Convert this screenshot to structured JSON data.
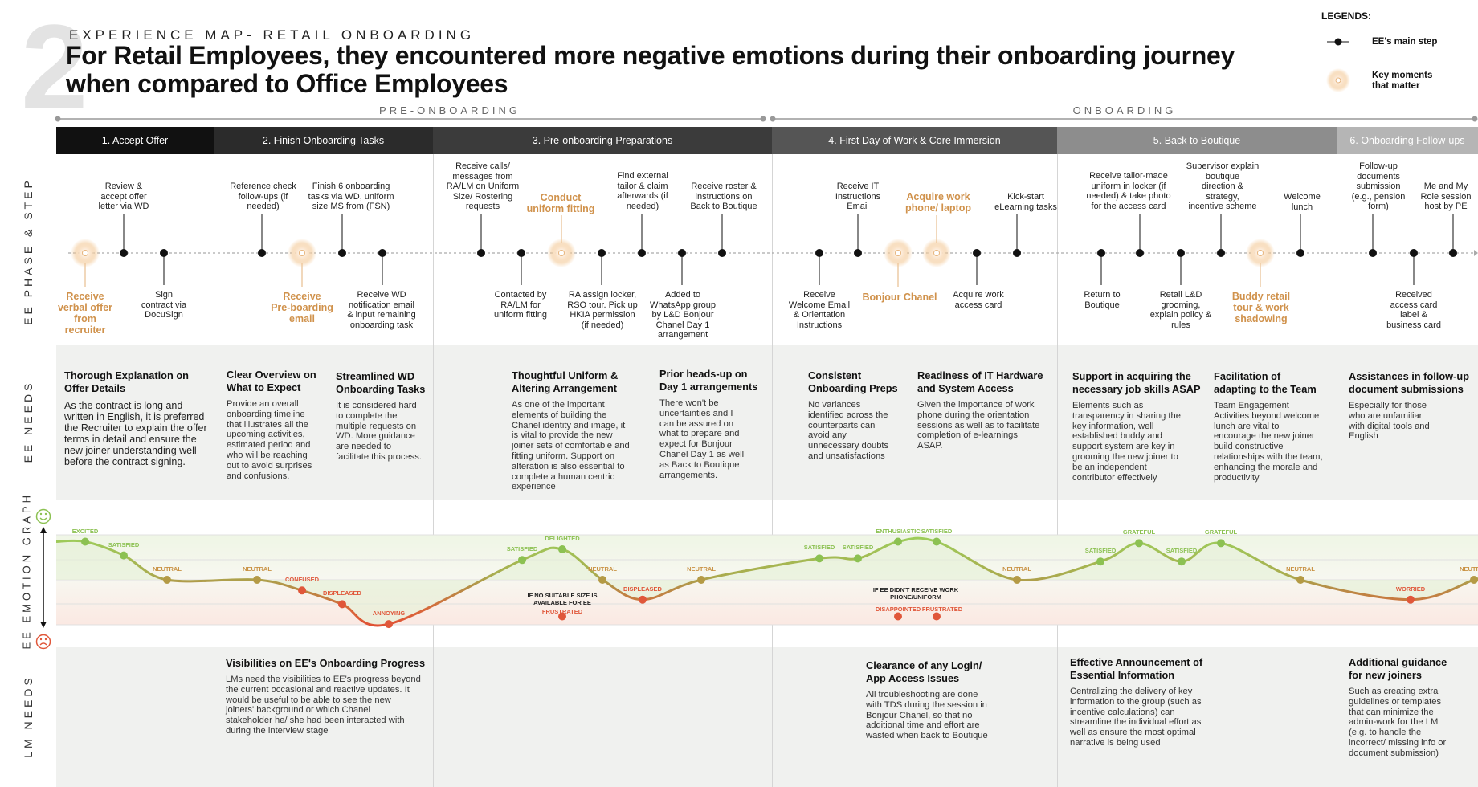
{
  "header": {
    "number": "2",
    "subtitle": "EXPERIENCE MAP- RETAIL ONBOARDING",
    "title_line1": "For Retail Employees, they encountered more negative emotions during their onboarding journey",
    "title_line2": "when compared to Office Employees"
  },
  "legend": {
    "title": "LEGENDS:",
    "main_step": "EE's main step",
    "key_moments_1": "Key moments",
    "key_moments_2": "that matter"
  },
  "phases": {
    "pre": "PRE-ONBOARDING",
    "on": "ONBOARDING"
  },
  "side_labels": {
    "steps": "EE PHASE & STEP",
    "ee_needs": "EE NEEDS",
    "emotion": "EE EMOTION GRAPH",
    "lm_needs": "LM NEEDS"
  },
  "stages": [
    "1. Accept Offer",
    "2. Finish Onboarding Tasks",
    "3. Pre-onboarding Preparations",
    "4. First Day of Work & Core Immersion",
    "5. Back to Boutique",
    "6. Onboarding Follow-ups"
  ],
  "steps_top": [
    "Review &\naccept offer\nletter via WD",
    "Reference check\nfollow-ups (if\nneeded)",
    "Finish 6 onboarding\ntasks via WD, uniform\nsize MS from (FSN)",
    "Receive calls/\nmessages from\nRA/LM on Uniform\nSize/ Rostering\nrequests",
    "Conduct\nuniform fitting",
    "Find external\ntailor & claim\nafterwards (if\nneeded)",
    "Receive roster &\ninstructions on\nBack to Boutique",
    "Receive IT\nInstructions\nEmail",
    "Acquire work\nphone/ laptop",
    "Kick-start\neLearning tasks",
    "Receive tailor-made\nuniform in locker (if\nneeded) & take photo\nfor the access card",
    "Supervisor explain\nboutique\ndirection &\nstrategy,\nincentive scheme",
    "Welcome\nlunch",
    "Follow-up\ndocuments\nsubmission\n(e.g., pension\nform)",
    "Me and My\nRole session\nhost by PE"
  ],
  "steps_bottom": [
    "Receive\nverbal offer\nfrom\nrecruiter",
    "Sign\ncontract via\nDocuSign",
    "Receive\nPre-boarding\nemail",
    "Receive WD\nnotification email\n& input remaining\nonboarding task",
    "Contacted by\nRA/LM for\nuniform fitting",
    "RA assign locker,\nRSO tour. Pick up\nHKIA permission\n(if needed)",
    "Added to\nWhatsApp group\nby L&D Bonjour\nChanel Day 1\narrangement",
    "Receive\nWelcome Email\n& Orientation\nInstructions",
    "Bonjour Chanel",
    "Acquire work\naccess card",
    "Return to\nBoutique",
    "Retail L&D\ngrooming,\nexplain policy &\nrules",
    "Buddy retail\ntour & work\nshadowing",
    "Received\naccess card\nlabel &\nbusiness card"
  ],
  "ee_needs": [
    {
      "h": "Thorough Explanation on\nOffer Details",
      "b": "As the contract is long and\nwritten in English, it is preferred\nthe Recruiter to explain the offer\nterms in detail and ensure the\nnew joiner understanding well\nbefore the contract signing."
    },
    {
      "h": "Clear Overview on\nWhat to Expect",
      "b": "Provide an overall\nonboarding timeline\nthat illustrates all the\nupcoming activities,\nestimated period and\nwho will be reaching\nout to avoid surprises\nand confusions."
    },
    {
      "h": "Streamlined WD\nOnboarding Tasks",
      "b": "It is considered hard\nto complete the\nmultiple requests on\nWD. More guidance\nare needed to\nfacilitate this process."
    },
    {
      "h": "Thoughtful Uniform &\nAltering Arrangement",
      "b": "As one of the important\nelements of building the\nChanel identity and image, it\nis vital to provide the new\njoiner sets of comfortable and\nfitting uniform. Support on\nalteration is also essential to\ncomplete a human centric\nexperience"
    },
    {
      "h": "Prior heads-up on\nDay 1 arrangements",
      "b": "There won't be\nuncertainties and I\ncan be assured on\nwhat to prepare and\nexpect for Bonjour\nChanel Day 1 as well\nas Back to Boutique\narrangements."
    },
    {
      "h": "Consistent\nOnboarding Preps",
      "b": "No variances\nidentified across the\ncounterparts can\navoid any\nunnecessary doubts\nand unsatisfactions"
    },
    {
      "h": "Readiness of IT Hardware\nand System Access",
      "b": "Given the importance of work\nphone during the orientation\nsessions as well as to facilitate\ncompletion of e-learnings\nASAP."
    },
    {
      "h": "Support in acquiring the\nnecessary job skills ASAP",
      "b": "Elements such as\ntransparency in sharing the\nkey information, well\nestablished buddy and\nsupport system are key in\ngrooming the new joiner to\nbe an independent\ncontributor effectively"
    },
    {
      "h": "Facilitation of\nadapting to the Team",
      "b": "Team Engagement\nActivities beyond welcome\nlunch are vital to\nencourage the new joiner\nbuild constructive\nrelationships with the team,\nenhancing the morale and\nproductivity"
    },
    {
      "h": "Assistances in follow-up\ndocument submissions",
      "b": "Especially for those\nwho are unfamiliar\nwith digital tools and\nEnglish"
    }
  ],
  "emotion_labels": [
    "EXCITED",
    "SATISFIED",
    "NEUTRAL",
    "NEUTRAL",
    "CONFUSED",
    "DISPLEASED",
    "ANNOYING",
    "SATISFIED",
    "DELIGHTED",
    "NEUTRAL",
    "DISPLEASED",
    "NEUTRAL",
    "SATISFIED",
    "SATISFIED",
    "ENTHUSIASTIC",
    "SATISFIED",
    "NEUTRAL",
    "SATISFIED",
    "GRATEFUL",
    "SATISFIED",
    "GRATEFUL",
    "NEUTRAL",
    "WORRIED",
    "NEUTRAL"
  ],
  "emotion_notes": {
    "size_1": "IF NO SUITABLE SIZE IS",
    "size_2": "AVAILABLE FOR EE",
    "frustrated": "FRUSTRATED",
    "phone_1": "IF EE DIDN'T RECEIVE WORK",
    "phone_2": "PHONE/UNIFORM",
    "disappointed": "DISAPPOINTED",
    "frustrated2": "FRUSTRATED"
  },
  "lm_needs": [
    {
      "h": "Visibilities on EE's Onboarding Progress",
      "b": "LMs need the visibilities to EE's progress beyond\nthe current occasional and reactive updates. It\nwould be useful to be able to see the new\njoiners' background or which Chanel\nstakeholder he/ she had been interacted with\nduring the interview stage"
    },
    {
      "h": "Clearance of any Login/\nApp Access Issues",
      "b": "All troubleshooting are done\nwith TDS during the session in\nBonjour Chanel, so that no\nadditional time and effort are\nwasted when back to Boutique"
    },
    {
      "h": "Effective Announcement of\nEssential Information",
      "b": "Centralizing the delivery of key\ninformation to the group (such as\nincentive calculations) can\nstreamline the individual effort as\nwell as ensure the most optimal\nnarrative is being used"
    },
    {
      "h": "Additional guidance\nfor new joiners",
      "b": "Such as creating extra\nguidelines or templates\nthat can minimize the\nadmin-work for the LM\n(e.g. to handle the\nincorrect/ missing info or\ndocument submission)"
    }
  ],
  "chart_data": {
    "type": "line",
    "title": "EE EMOTION GRAPH",
    "y_scale": "emotion level, 0 = neutral, positive = happy, negative = unhappy",
    "points": [
      {
        "x": 1,
        "y": 2.5,
        "label": "EXCITED"
      },
      {
        "x": 2,
        "y": 1.6,
        "label": "SATISFIED"
      },
      {
        "x": 3,
        "y": 0,
        "label": "NEUTRAL"
      },
      {
        "x": 4,
        "y": 0,
        "label": "NEUTRAL"
      },
      {
        "x": 5,
        "y": -0.7,
        "label": "CONFUSED"
      },
      {
        "x": 6,
        "y": -1.6,
        "label": "DISPLEASED"
      },
      {
        "x": 7,
        "y": -2.9,
        "label": "ANNOYING"
      },
      {
        "x": 8,
        "y": 1.3,
        "label": "SATISFIED"
      },
      {
        "x": 9,
        "y": 2.0,
        "label": "DELIGHTED"
      },
      {
        "x": 10,
        "y": 0,
        "label": "NEUTRAL"
      },
      {
        "x": 11,
        "y": -1.3,
        "label": "DISPLEASED"
      },
      {
        "x": 12,
        "y": 0,
        "label": "NEUTRAL"
      },
      {
        "x": 13,
        "y": 1.4,
        "label": "SATISFIED"
      },
      {
        "x": 14,
        "y": 1.4,
        "label": "SATISFIED"
      },
      {
        "x": 15,
        "y": 2.5,
        "label": "ENTHUSIASTIC"
      },
      {
        "x": 16,
        "y": 2.5,
        "label": "SATISFIED"
      },
      {
        "x": 17,
        "y": 0,
        "label": "NEUTRAL"
      },
      {
        "x": 18,
        "y": 1.2,
        "label": "SATISFIED"
      },
      {
        "x": 19,
        "y": 2.4,
        "label": "GRATEFUL"
      },
      {
        "x": 20,
        "y": 1.2,
        "label": "SATISFIED"
      },
      {
        "x": 21,
        "y": 2.4,
        "label": "GRATEFUL"
      },
      {
        "x": 22,
        "y": 0,
        "label": "NEUTRAL"
      },
      {
        "x": 23,
        "y": -1.3,
        "label": "WORRIED"
      },
      {
        "x": 24,
        "y": 0,
        "label": "NEUTRAL"
      }
    ],
    "side_points": [
      {
        "x": 9,
        "y": -2.5,
        "label": "FRUSTRATED"
      },
      {
        "x": 15,
        "y": -2.5,
        "label": "DISAPPOINTED"
      },
      {
        "x": 16,
        "y": -2.5,
        "label": "FRUSTRATED"
      }
    ],
    "ylim": [
      -3.5,
      3.5
    ]
  },
  "colors": {
    "stage1": "#111111",
    "stage2": "#2b2b2b",
    "stage3": "#3b3b3b",
    "stage4": "#555555",
    "stage5": "#8d8d8d",
    "stage6": "#b5b5b5",
    "key": "#d0924c",
    "positive": "#8cc152",
    "neutral": "#b49a45",
    "negative": "#e0573a"
  }
}
